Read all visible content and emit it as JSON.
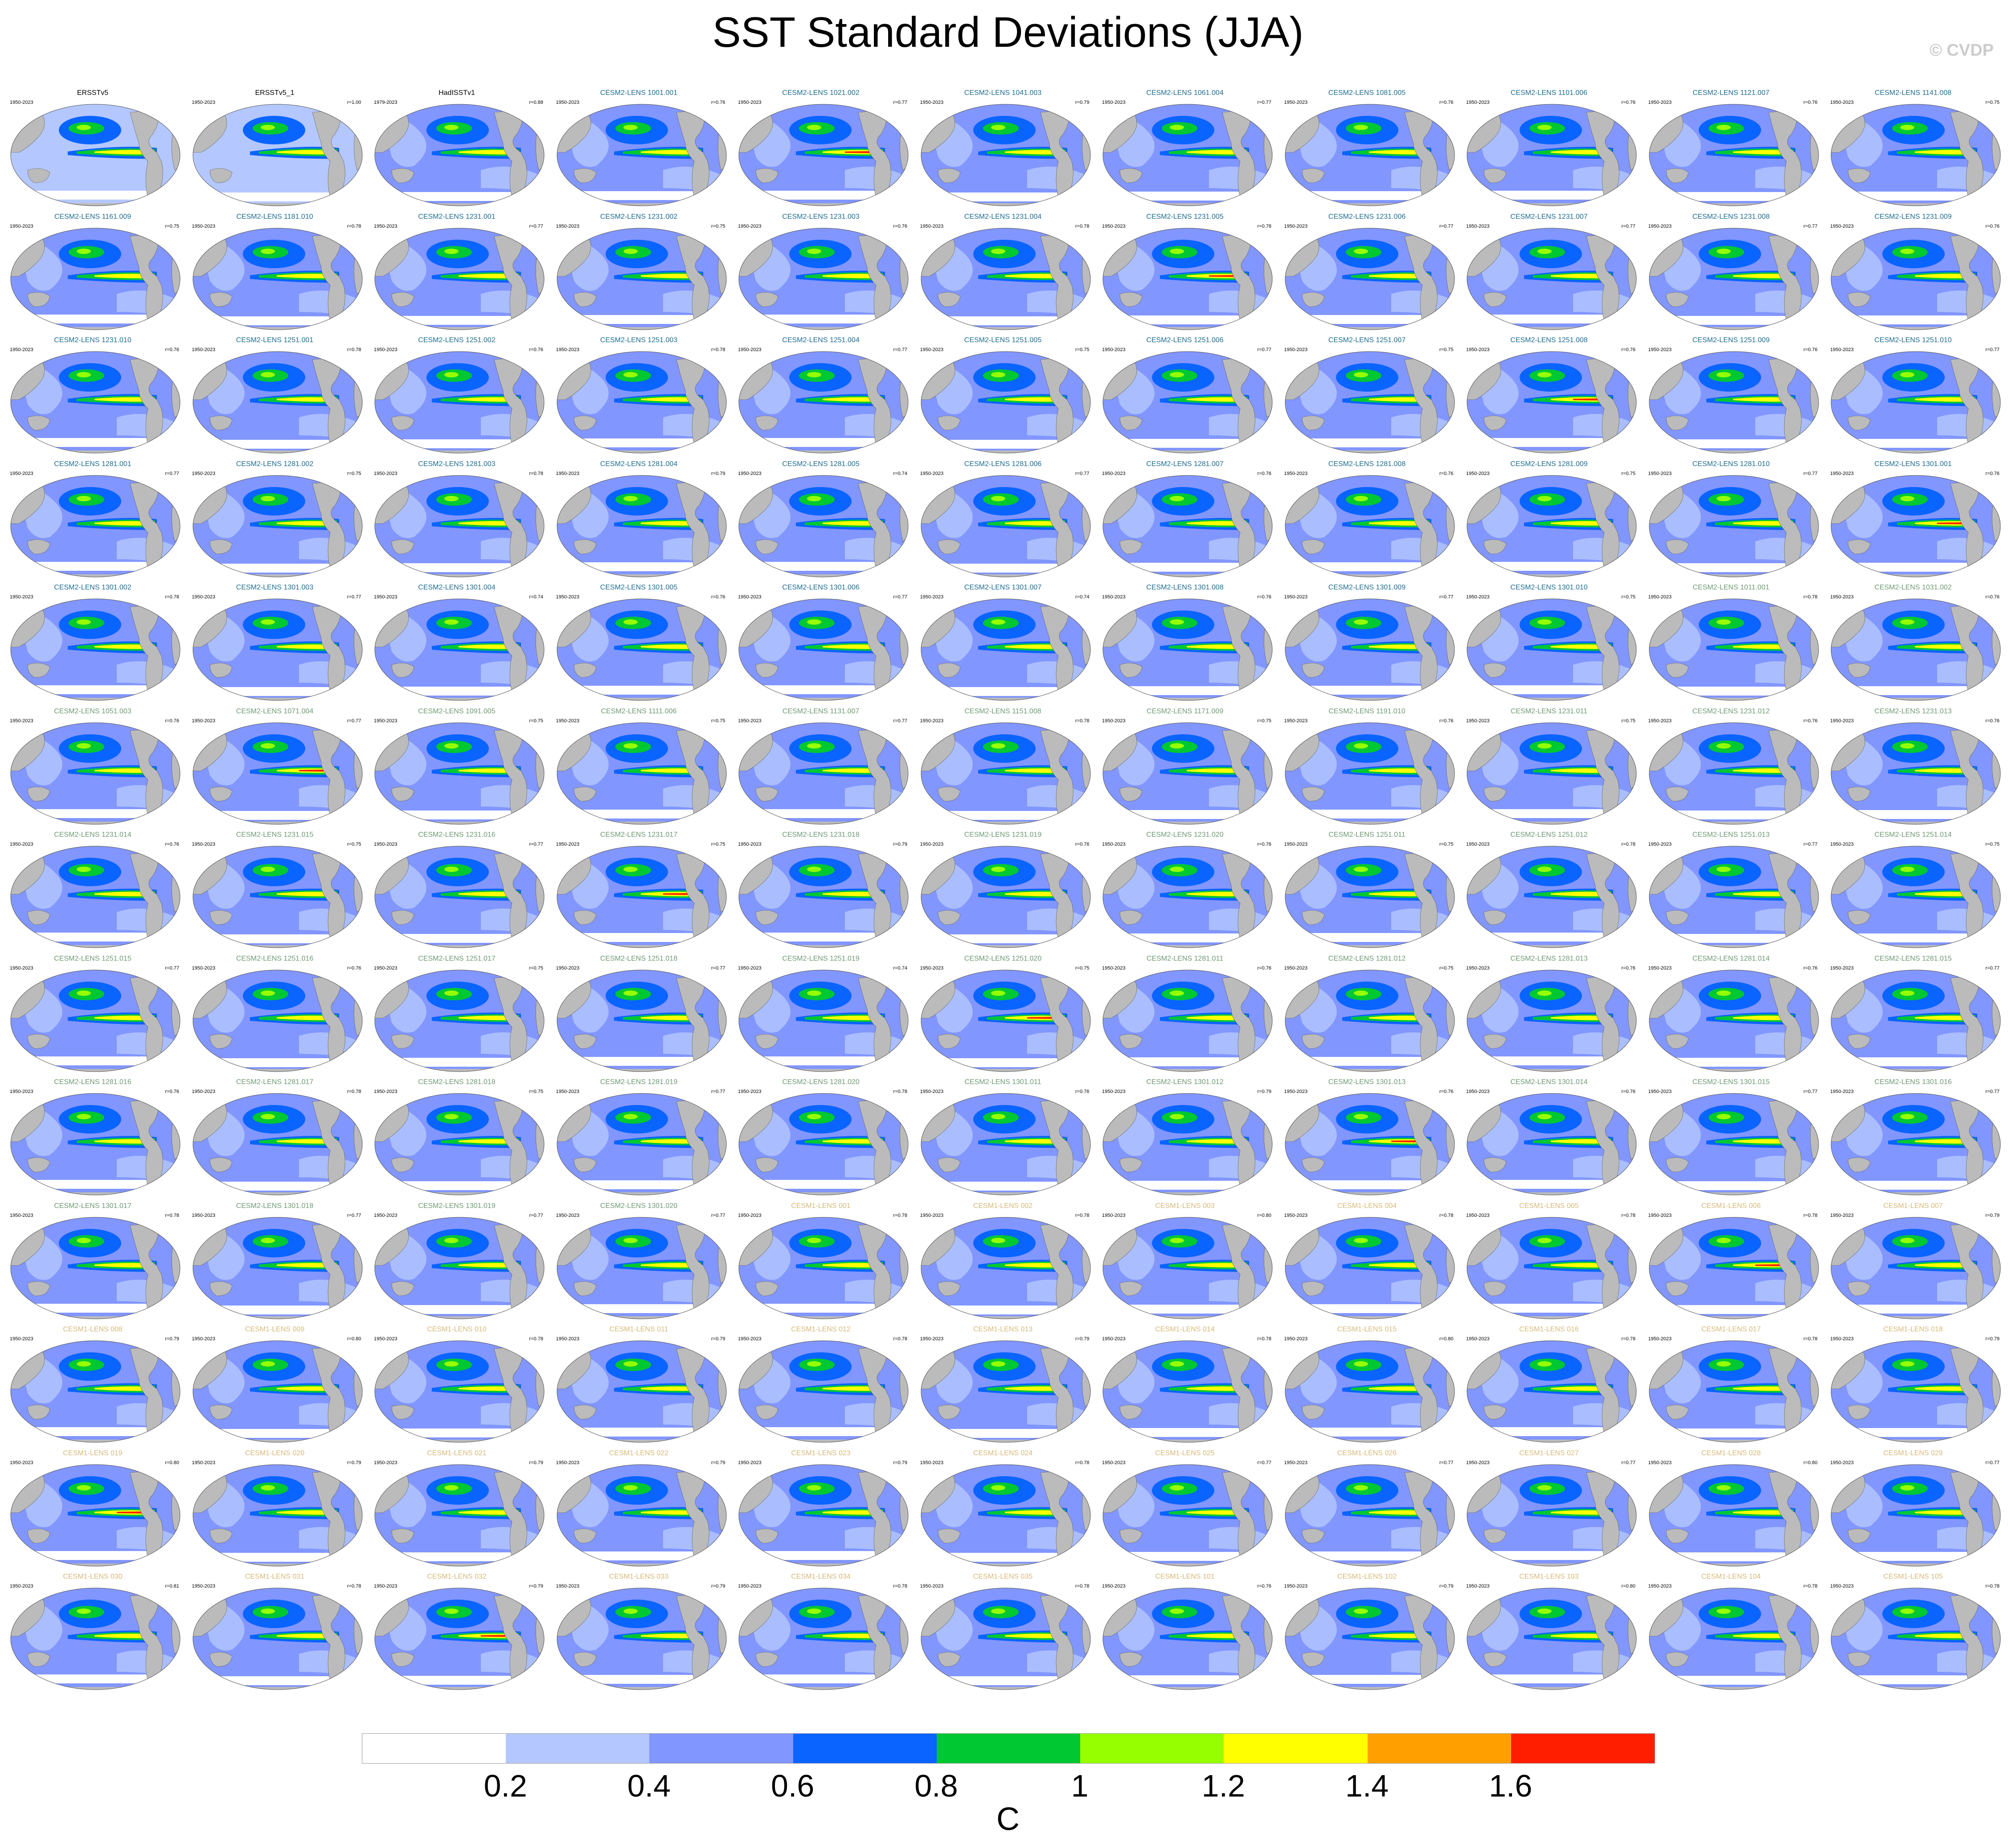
{
  "title": "SST Standard Deviations (JJA)",
  "credit": "© CVDP",
  "colorbar": {
    "colors": [
      "#ffffff",
      "#b4c8ff",
      "#8296ff",
      "#0a64ff",
      "#00c832",
      "#96ff00",
      "#ffff00",
      "#ffa000",
      "#ff1e00"
    ],
    "labels": [
      "0.2",
      "0.4",
      "0.6",
      "0.8",
      "1",
      "1.2",
      "1.4",
      "1.6"
    ],
    "units": "C"
  },
  "map_colors": {
    "land": "#bbbbbb",
    "ocean_base": "#b4c8ff",
    "level2": "#8296ff",
    "level3": "#0a64ff",
    "level4": "#00c832",
    "level5": "#96ff00",
    "level6": "#ffff00",
    "level7": "#ff1e00",
    "outline": "#555555"
  },
  "panels": [
    {
      "title": "ERSSTv5",
      "years": "1950-2023",
      "corr": "",
      "group": "obs"
    },
    {
      "title": "ERSSTv5_1",
      "years": "1950-2023",
      "corr": "r=1.00",
      "group": "obs"
    },
    {
      "title": "HadISSTv1",
      "years": "1979-2023",
      "corr": "r=0.88",
      "group": "obs"
    },
    {
      "title": "CESM2-LENS 1001.001",
      "years": "1950-2023",
      "corr": "r=0.76",
      "group": "c2"
    },
    {
      "title": "CESM2-LENS 1021.002",
      "years": "1950-2023",
      "corr": "r=0.77",
      "group": "c2"
    },
    {
      "title": "CESM2-LENS 1041.003",
      "years": "1950-2023",
      "corr": "r=0.79",
      "group": "c2"
    },
    {
      "title": "CESM2-LENS 1061.004",
      "years": "1950-2023",
      "corr": "r=0.77",
      "group": "c2"
    },
    {
      "title": "CESM2-LENS 1081.005",
      "years": "1950-2023",
      "corr": "r=0.76",
      "group": "c2"
    },
    {
      "title": "CESM2-LENS 1101.006",
      "years": "1950-2023",
      "corr": "r=0.76",
      "group": "c2"
    },
    {
      "title": "CESM2-LENS 1121.007",
      "years": "1950-2023",
      "corr": "r=0.76",
      "group": "c2"
    },
    {
      "title": "CESM2-LENS 1141.008",
      "years": "1950-2023",
      "corr": "r=0.75",
      "group": "c2"
    },
    {
      "title": "CESM2-LENS 1161.009",
      "years": "1950-2023",
      "corr": "r=0.75",
      "group": "c2"
    },
    {
      "title": "CESM2-LENS 1181.010",
      "years": "1950-2023",
      "corr": "r=0.78",
      "group": "c2"
    },
    {
      "title": "CESM2-LENS 1231.001",
      "years": "1950-2023",
      "corr": "r=0.77",
      "group": "c2"
    },
    {
      "title": "CESM2-LENS 1231.002",
      "years": "1950-2023",
      "corr": "r=0.75",
      "group": "c2"
    },
    {
      "title": "CESM2-LENS 1231.003",
      "years": "1950-2023",
      "corr": "r=0.76",
      "group": "c2"
    },
    {
      "title": "CESM2-LENS 1231.004",
      "years": "1950-2023",
      "corr": "r=0.78",
      "group": "c2"
    },
    {
      "title": "CESM2-LENS 1231.005",
      "years": "1950-2023",
      "corr": "r=0.78",
      "group": "c2"
    },
    {
      "title": "CESM2-LENS 1231.006",
      "years": "1950-2023",
      "corr": "r=0.77",
      "group": "c2"
    },
    {
      "title": "CESM2-LENS 1231.007",
      "years": "1950-2023",
      "corr": "r=0.77",
      "group": "c2"
    },
    {
      "title": "CESM2-LENS 1231.008",
      "years": "1950-2023",
      "corr": "r=0.77",
      "group": "c2"
    },
    {
      "title": "CESM2-LENS 1231.009",
      "years": "1950-2023",
      "corr": "r=0.76",
      "group": "c2"
    },
    {
      "title": "CESM2-LENS 1231.010",
      "years": "1950-2023",
      "corr": "r=0.76",
      "group": "c2"
    },
    {
      "title": "CESM2-LENS 1251.001",
      "years": "1950-2023",
      "corr": "r=0.78",
      "group": "c2"
    },
    {
      "title": "CESM2-LENS 1251.002",
      "years": "1950-2023",
      "corr": "r=0.76",
      "group": "c2"
    },
    {
      "title": "CESM2-LENS 1251.003",
      "years": "1950-2023",
      "corr": "r=0.78",
      "group": "c2"
    },
    {
      "title": "CESM2-LENS 1251.004",
      "years": "1950-2023",
      "corr": "r=0.77",
      "group": "c2"
    },
    {
      "title": "CESM2-LENS 1251.005",
      "years": "1950-2023",
      "corr": "r=0.75",
      "group": "c2"
    },
    {
      "title": "CESM2-LENS 1251.006",
      "years": "1950-2023",
      "corr": "r=0.77",
      "group": "c2"
    },
    {
      "title": "CESM2-LENS 1251.007",
      "years": "1950-2023",
      "corr": "r=0.75",
      "group": "c2"
    },
    {
      "title": "CESM2-LENS 1251.008",
      "years": "1950-2023",
      "corr": "r=0.76",
      "group": "c2"
    },
    {
      "title": "CESM2-LENS 1251.009",
      "years": "1950-2023",
      "corr": "r=0.76",
      "group": "c2"
    },
    {
      "title": "CESM2-LENS 1251.010",
      "years": "1950-2023",
      "corr": "r=0.77",
      "group": "c2"
    },
    {
      "title": "CESM2-LENS 1281.001",
      "years": "1950-2023",
      "corr": "r=0.77",
      "group": "c2"
    },
    {
      "title": "CESM2-LENS 1281.002",
      "years": "1950-2023",
      "corr": "r=0.75",
      "group": "c2"
    },
    {
      "title": "CESM2-LENS 1281.003",
      "years": "1950-2023",
      "corr": "r=0.78",
      "group": "c2"
    },
    {
      "title": "CESM2-LENS 1281.004",
      "years": "1950-2023",
      "corr": "r=0.79",
      "group": "c2"
    },
    {
      "title": "CESM2-LENS 1281.005",
      "years": "1950-2023",
      "corr": "r=0.74",
      "group": "c2"
    },
    {
      "title": "CESM2-LENS 1281.006",
      "years": "1950-2023",
      "corr": "r=0.77",
      "group": "c2"
    },
    {
      "title": "CESM2-LENS 1281.007",
      "years": "1950-2023",
      "corr": "r=0.76",
      "group": "c2"
    },
    {
      "title": "CESM2-LENS 1281.008",
      "years": "1950-2023",
      "corr": "r=0.76",
      "group": "c2"
    },
    {
      "title": "CESM2-LENS 1281.009",
      "years": "1950-2023",
      "corr": "r=0.75",
      "group": "c2"
    },
    {
      "title": "CESM2-LENS 1281.010",
      "years": "1950-2023",
      "corr": "r=0.77",
      "group": "c2"
    },
    {
      "title": "CESM2-LENS 1301.001",
      "years": "1950-2023",
      "corr": "r=0.76",
      "group": "c2"
    },
    {
      "title": "CESM2-LENS 1301.002",
      "years": "1950-2023",
      "corr": "r=0.78",
      "group": "c2"
    },
    {
      "title": "CESM2-LENS 1301.003",
      "years": "1950-2023",
      "corr": "r=0.77",
      "group": "c2"
    },
    {
      "title": "CESM2-LENS 1301.004",
      "years": "1950-2023",
      "corr": "r=0.74",
      "group": "c2"
    },
    {
      "title": "CESM2-LENS 1301.005",
      "years": "1950-2023",
      "corr": "r=0.76",
      "group": "c2"
    },
    {
      "title": "CESM2-LENS 1301.006",
      "years": "1950-2023",
      "corr": "r=0.77",
      "group": "c2"
    },
    {
      "title": "CESM2-LENS 1301.007",
      "years": "1950-2023",
      "corr": "r=0.74",
      "group": "c2"
    },
    {
      "title": "CESM2-LENS 1301.008",
      "years": "1950-2023",
      "corr": "r=0.76",
      "group": "c2"
    },
    {
      "title": "CESM2-LENS 1301.009",
      "years": "1950-2023",
      "corr": "r=0.77",
      "group": "c2"
    },
    {
      "title": "CESM2-LENS 1301.010",
      "years": "1950-2023",
      "corr": "r=0.75",
      "group": "c2"
    },
    {
      "title": "CESM2-LENS 1011.001",
      "years": "1950-2023",
      "corr": "r=0.78",
      "group": "c2s"
    },
    {
      "title": "CESM2-LENS 1031.002",
      "years": "1950-2023",
      "corr": "r=0.76",
      "group": "c2s"
    },
    {
      "title": "CESM2-LENS 1051.003",
      "years": "1950-2023",
      "corr": "r=0.76",
      "group": "c2s"
    },
    {
      "title": "CESM2-LENS 1071.004",
      "years": "1950-2023",
      "corr": "r=0.77",
      "group": "c2s"
    },
    {
      "title": "CESM2-LENS 1091.005",
      "years": "1950-2023",
      "corr": "r=0.75",
      "group": "c2s"
    },
    {
      "title": "CESM2-LENS 1111.006",
      "years": "1950-2023",
      "corr": "r=0.75",
      "group": "c2s"
    },
    {
      "title": "CESM2-LENS 1131.007",
      "years": "1950-2023",
      "corr": "r=0.77",
      "group": "c2s"
    },
    {
      "title": "CESM2-LENS 1151.008",
      "years": "1950-2023",
      "corr": "r=0.78",
      "group": "c2s"
    },
    {
      "title": "CESM2-LENS 1171.009",
      "years": "1950-2023",
      "corr": "r=0.75",
      "group": "c2s"
    },
    {
      "title": "CESM2-LENS 1191.010",
      "years": "1950-2023",
      "corr": "r=0.76",
      "group": "c2s"
    },
    {
      "title": "CESM2-LENS 1231.011",
      "years": "1950-2023",
      "corr": "r=0.75",
      "group": "c2s"
    },
    {
      "title": "CESM2-LENS 1231.012",
      "years": "1950-2023",
      "corr": "r=0.76",
      "group": "c2s"
    },
    {
      "title": "CESM2-LENS 1231.013",
      "years": "1950-2023",
      "corr": "r=0.76",
      "group": "c2s"
    },
    {
      "title": "CESM2-LENS 1231.014",
      "years": "1950-2023",
      "corr": "r=0.76",
      "group": "c2s"
    },
    {
      "title": "CESM2-LENS 1231.015",
      "years": "1950-2023",
      "corr": "r=0.75",
      "group": "c2s"
    },
    {
      "title": "CESM2-LENS 1231.016",
      "years": "1950-2023",
      "corr": "r=0.77",
      "group": "c2s"
    },
    {
      "title": "CESM2-LENS 1231.017",
      "years": "1950-2023",
      "corr": "r=0.75",
      "group": "c2s"
    },
    {
      "title": "CESM2-LENS 1231.018",
      "years": "1950-2023",
      "corr": "r=0.79",
      "group": "c2s"
    },
    {
      "title": "CESM2-LENS 1231.019",
      "years": "1950-2023",
      "corr": "r=0.76",
      "group": "c2s"
    },
    {
      "title": "CESM2-LENS 1231.020",
      "years": "1950-2023",
      "corr": "r=0.76",
      "group": "c2s"
    },
    {
      "title": "CESM2-LENS 1251.011",
      "years": "1950-2023",
      "corr": "r=0.75",
      "group": "c2s"
    },
    {
      "title": "CESM2-LENS 1251.012",
      "years": "1950-2023",
      "corr": "r=0.78",
      "group": "c2s"
    },
    {
      "title": "CESM2-LENS 1251.013",
      "years": "1950-2023",
      "corr": "r=0.77",
      "group": "c2s"
    },
    {
      "title": "CESM2-LENS 1251.014",
      "years": "1950-2023",
      "corr": "r=0.75",
      "group": "c2s"
    },
    {
      "title": "CESM2-LENS 1251.015",
      "years": "1950-2023",
      "corr": "r=0.77",
      "group": "c2s"
    },
    {
      "title": "CESM2-LENS 1251.016",
      "years": "1950-2023",
      "corr": "r=0.76",
      "group": "c2s"
    },
    {
      "title": "CESM2-LENS 1251.017",
      "years": "1950-2023",
      "corr": "r=0.75",
      "group": "c2s"
    },
    {
      "title": "CESM2-LENS 1251.018",
      "years": "1950-2023",
      "corr": "r=0.77",
      "group": "c2s"
    },
    {
      "title": "CESM2-LENS 1251.019",
      "years": "1950-2023",
      "corr": "r=0.74",
      "group": "c2s"
    },
    {
      "title": "CESM2-LENS 1251.020",
      "years": "1950-2023",
      "corr": "r=0.75",
      "group": "c2s"
    },
    {
      "title": "CESM2-LENS 1281.011",
      "years": "1950-2023",
      "corr": "r=0.76",
      "group": "c2s"
    },
    {
      "title": "CESM2-LENS 1281.012",
      "years": "1950-2023",
      "corr": "r=0.75",
      "group": "c2s"
    },
    {
      "title": "CESM2-LENS 1281.013",
      "years": "1950-2023",
      "corr": "r=0.76",
      "group": "c2s"
    },
    {
      "title": "CESM2-LENS 1281.014",
      "years": "1950-2023",
      "corr": "r=0.76",
      "group": "c2s"
    },
    {
      "title": "CESM2-LENS 1281.015",
      "years": "1950-2023",
      "corr": "r=0.77",
      "group": "c2s"
    },
    {
      "title": "CESM2-LENS 1281.016",
      "years": "1950-2023",
      "corr": "r=0.76",
      "group": "c2s"
    },
    {
      "title": "CESM2-LENS 1281.017",
      "years": "1950-2023",
      "corr": "r=0.78",
      "group": "c2s"
    },
    {
      "title": "CESM2-LENS 1281.018",
      "years": "1950-2023",
      "corr": "r=0.75",
      "group": "c2s"
    },
    {
      "title": "CESM2-LENS 1281.019",
      "years": "1950-2023",
      "corr": "r=0.77",
      "group": "c2s"
    },
    {
      "title": "CESM2-LENS 1281.020",
      "years": "1950-2023",
      "corr": "r=0.78",
      "group": "c2s"
    },
    {
      "title": "CESM2-LENS 1301.011",
      "years": "1950-2023",
      "corr": "r=0.76",
      "group": "c2s"
    },
    {
      "title": "CESM2-LENS 1301.012",
      "years": "1950-2023",
      "corr": "r=0.79",
      "group": "c2s"
    },
    {
      "title": "CESM2-LENS 1301.013",
      "years": "1950-2023",
      "corr": "r=0.76",
      "group": "c2s"
    },
    {
      "title": "CESM2-LENS 1301.014",
      "years": "1950-2023",
      "corr": "r=0.76",
      "group": "c2s"
    },
    {
      "title": "CESM2-LENS 1301.015",
      "years": "1950-2023",
      "corr": "r=0.77",
      "group": "c2s"
    },
    {
      "title": "CESM2-LENS 1301.016",
      "years": "1950-2023",
      "corr": "r=0.77",
      "group": "c2s"
    },
    {
      "title": "CESM2-LENS 1301.017",
      "years": "1950-2023",
      "corr": "r=0.78",
      "group": "c2s"
    },
    {
      "title": "CESM2-LENS 1301.018",
      "years": "1950-2023",
      "corr": "r=0.77",
      "group": "c2s"
    },
    {
      "title": "CESM2-LENS 1301.019",
      "years": "1950-2023",
      "corr": "r=0.77",
      "group": "c2s"
    },
    {
      "title": "CESM2-LENS 1301.020",
      "years": "1950-2023",
      "corr": "r=0.77",
      "group": "c2s"
    },
    {
      "title": "CESM1-LENS 001",
      "years": "1950-2023",
      "corr": "r=0.78",
      "group": "c1"
    },
    {
      "title": "CESM1-LENS 002",
      "years": "1950-2023",
      "corr": "r=0.78",
      "group": "c1"
    },
    {
      "title": "CESM1-LENS 003",
      "years": "1950-2023",
      "corr": "r=0.80",
      "group": "c1"
    },
    {
      "title": "CESM1-LENS 004",
      "years": "1950-2023",
      "corr": "r=0.78",
      "group": "c1"
    },
    {
      "title": "CESM1-LENS 005",
      "years": "1950-2023",
      "corr": "r=0.78",
      "group": "c1"
    },
    {
      "title": "CESM1-LENS 006",
      "years": "1950-2023",
      "corr": "r=0.78",
      "group": "c1"
    },
    {
      "title": "CESM1-LENS 007",
      "years": "1950-2023",
      "corr": "r=0.79",
      "group": "c1"
    },
    {
      "title": "CESM1-LENS 008",
      "years": "1950-2023",
      "corr": "r=0.79",
      "group": "c1"
    },
    {
      "title": "CESM1-LENS 009",
      "years": "1950-2023",
      "corr": "r=0.80",
      "group": "c1"
    },
    {
      "title": "CESM1-LENS 010",
      "years": "1950-2023",
      "corr": "r=0.78",
      "group": "c1"
    },
    {
      "title": "CESM1-LENS 011",
      "years": "1950-2023",
      "corr": "r=0.79",
      "group": "c1"
    },
    {
      "title": "CESM1-LENS 012",
      "years": "1950-2023",
      "corr": "r=0.78",
      "group": "c1"
    },
    {
      "title": "CESM1-LENS 013",
      "years": "1950-2023",
      "corr": "r=0.79",
      "group": "c1"
    },
    {
      "title": "CESM1-LENS 014",
      "years": "1950-2023",
      "corr": "r=0.78",
      "group": "c1"
    },
    {
      "title": "CESM1-LENS 015",
      "years": "1950-2023",
      "corr": "r=0.80",
      "group": "c1"
    },
    {
      "title": "CESM1-LENS 016",
      "years": "1950-2023",
      "corr": "r=0.78",
      "group": "c1"
    },
    {
      "title": "CESM1-LENS 017",
      "years": "1950-2023",
      "corr": "r=0.78",
      "group": "c1"
    },
    {
      "title": "CESM1-LENS 018",
      "years": "1950-2023",
      "corr": "r=0.79",
      "group": "c1"
    },
    {
      "title": "CESM1-LENS 019",
      "years": "1950-2023",
      "corr": "r=0.80",
      "group": "c1"
    },
    {
      "title": "CESM1-LENS 020",
      "years": "1950-2023",
      "corr": "r=0.79",
      "group": "c1"
    },
    {
      "title": "CESM1-LENS 021",
      "years": "1950-2023",
      "corr": "r=0.79",
      "group": "c1"
    },
    {
      "title": "CESM1-LENS 022",
      "years": "1950-2023",
      "corr": "r=0.79",
      "group": "c1"
    },
    {
      "title": "CESM1-LENS 023",
      "years": "1950-2023",
      "corr": "r=0.79",
      "group": "c1"
    },
    {
      "title": "CESM1-LENS 024",
      "years": "1950-2023",
      "corr": "r=0.78",
      "group": "c1"
    },
    {
      "title": "CESM1-LENS 025",
      "years": "1950-2023",
      "corr": "r=0.77",
      "group": "c1"
    },
    {
      "title": "CESM1-LENS 026",
      "years": "1950-2023",
      "corr": "r=0.77",
      "group": "c1"
    },
    {
      "title": "CESM1-LENS 027",
      "years": "1950-2023",
      "corr": "r=0.77",
      "group": "c1"
    },
    {
      "title": "CESM1-LENS 028",
      "years": "1950-2023",
      "corr": "r=0.80",
      "group": "c1"
    },
    {
      "title": "CESM1-LENS 029",
      "years": "1950-2023",
      "corr": "r=0.77",
      "group": "c1"
    },
    {
      "title": "CESM1-LENS 030",
      "years": "1950-2023",
      "corr": "r=0.81",
      "group": "c1"
    },
    {
      "title": "CESM1-LENS 031",
      "years": "1950-2023",
      "corr": "r=0.78",
      "group": "c1"
    },
    {
      "title": "CESM1-LENS 032",
      "years": "1950-2023",
      "corr": "r=0.79",
      "group": "c1"
    },
    {
      "title": "CESM1-LENS 033",
      "years": "1950-2023",
      "corr": "r=0.79",
      "group": "c1"
    },
    {
      "title": "CESM1-LENS 034",
      "years": "1950-2023",
      "corr": "r=0.78",
      "group": "c1"
    },
    {
      "title": "CESM1-LENS 035",
      "years": "1950-2023",
      "corr": "r=0.78",
      "group": "c1"
    },
    {
      "title": "CESM1-LENS 101",
      "years": "1950-2023",
      "corr": "r=0.76",
      "group": "c1"
    },
    {
      "title": "CESM1-LENS 102",
      "years": "1950-2023",
      "corr": "r=0.79",
      "group": "c1"
    },
    {
      "title": "CESM1-LENS 103",
      "years": "1950-2023",
      "corr": "r=0.80",
      "group": "c1"
    },
    {
      "title": "CESM1-LENS 104",
      "years": "1950-2023",
      "corr": "r=0.78",
      "group": "c1"
    },
    {
      "title": "CESM1-LENS 105",
      "years": "1950-2023",
      "corr": "r=0.78",
      "group": "c1"
    }
  ],
  "group_title_colors": {
    "obs": "#000000",
    "c2": "#1f6d8f",
    "c2s": "#6f9a74",
    "c1": "#d6b97a"
  }
}
